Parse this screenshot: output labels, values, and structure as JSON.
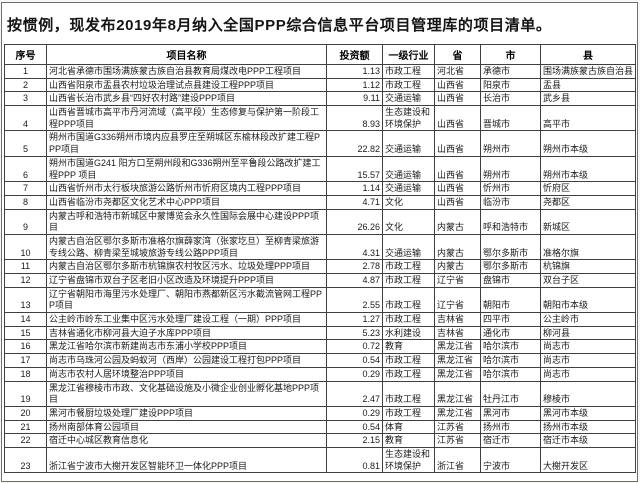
{
  "title": "按惯例，现发布2019年8月纳入全国PPP综合信息平台项目管理库的项目清单。",
  "colors": {
    "background": "#ffffff",
    "border": "#3f3f3f",
    "text": "#1a1a1a"
  },
  "table": {
    "columns": [
      "序号",
      "项目名称",
      "投资额",
      "一级行业",
      "省",
      "市",
      "县"
    ],
    "rows": [
      {
        "no": "1",
        "name": "河北省承德市围场满族蒙古族自治县教育局煤改电PPP工程项目",
        "investment": "1.13",
        "industry": "市政工程",
        "province": "河北省",
        "city": "承德市",
        "county": "围场满族蒙古族自治县"
      },
      {
        "no": "2",
        "name": "山西省阳泉市盂县农村垃圾治理试点县建设工程PPP项目",
        "investment": "1.12",
        "industry": "市政工程",
        "province": "山西省",
        "city": "阳泉市",
        "county": "盂县"
      },
      {
        "no": "3",
        "name": "山西省长治市武乡县“四好农村路”建设PPP项目",
        "investment": "9.11",
        "industry": "交通运输",
        "province": "山西省",
        "city": "长治市",
        "county": "武乡县"
      },
      {
        "no": "4",
        "name": "山西省晋城市高平市丹河流域（高平段）生态修复与保护第一阶段工程PPP项目",
        "investment": "8.93",
        "industry": "生态建设和环境保护",
        "province": "山西省",
        "city": "晋城市",
        "county": "高平市"
      },
      {
        "no": "5",
        "name": "朔州市国道G336朔州市境内应县罗庄至朔城区东榆林段改扩建工程PPP项目",
        "investment": "22.82",
        "industry": "交通运输",
        "province": "山西省",
        "city": "朔州市",
        "county": "朔州市本级"
      },
      {
        "no": "6",
        "name": "朔州市国道G241 阳方口至朔州段和G336朔州至平鲁段公路改扩建工程PPP 项目",
        "investment": "15.57",
        "industry": "交通运输",
        "province": "山西省",
        "city": "朔州市",
        "county": "朔州市本级"
      },
      {
        "no": "7",
        "name": "山西省忻州市太行板块旅游公路忻州市忻府区境内工程PPP项目",
        "investment": "1.14",
        "industry": "交通运输",
        "province": "山西省",
        "city": "忻州市",
        "county": "忻府区"
      },
      {
        "no": "8",
        "name": "山西省临汾市尧都区文化艺术中心PPP项目",
        "investment": "4.71",
        "industry": "文化",
        "province": "山西省",
        "city": "临汾市",
        "county": "尧都区"
      },
      {
        "no": "9",
        "name": "内蒙古呼和浩特市新城区中蒙博览会永久性国际会展中心建设PPP项目",
        "investment": "26.26",
        "industry": "文化",
        "province": "内蒙古",
        "city": "呼和浩特市",
        "county": "新城区"
      },
      {
        "no": "10",
        "name": "内蒙古自治区鄂尔多斯市准格尔旗薛家湾（张家圪旦）至柳青梁旅游专线公路、柳青梁至城坡旅游专线公路PPP项目",
        "investment": "4.31",
        "industry": "交通运输",
        "province": "内蒙古",
        "city": "鄂尔多斯市",
        "county": "准格尔旗"
      },
      {
        "no": "11",
        "name": "内蒙古自治区鄂尔多斯市杭锦旗农村牧区污水、垃圾处理PPP项目",
        "investment": "2.78",
        "industry": "市政工程",
        "province": "内蒙古",
        "city": "鄂尔多斯市",
        "county": "杭锦旗"
      },
      {
        "no": "12",
        "name": "辽宁省盘锦市双台子区老旧小区改造及环境提升PPP项目",
        "investment": "4.87",
        "industry": "市政工程",
        "province": "辽宁省",
        "city": "盘锦市",
        "county": "双台子区"
      },
      {
        "no": "13",
        "name": "辽宁省朝阳市海里污水处理厂、朝阳市燕都新区污水截流管网工程PPP项目",
        "investment": "2.55",
        "industry": "市政工程",
        "province": "辽宁省",
        "city": "朝阳市",
        "county": "朝阳市本级"
      },
      {
        "no": "14",
        "name": "公主岭市岭东工业集中区污水处理厂建设工程（一期）PPP项目",
        "investment": "1.27",
        "industry": "市政工程",
        "province": "吉林省",
        "city": "四平市",
        "county": "公主岭市"
      },
      {
        "no": "15",
        "name": "吉林省通化市柳河县大迫子水库PPP项目",
        "investment": "5.23",
        "industry": "水利建设",
        "province": "吉林省",
        "city": "通化市",
        "county": "柳河县"
      },
      {
        "no": "16",
        "name": "黑龙江省哈尔滨市新建尚志市东浦小学校PPP项目",
        "investment": "0.72",
        "industry": "教育",
        "province": "黑龙江省",
        "city": "哈尔滨市",
        "county": "尚志市"
      },
      {
        "no": "17",
        "name": "尚志市乌珠河公园及蚂蚁河（西岸）公园建设工程打包PPP项目",
        "investment": "0.54",
        "industry": "市政工程",
        "province": "黑龙江省",
        "city": "哈尔滨市",
        "county": "尚志市"
      },
      {
        "no": "18",
        "name": "尚志市农村人居环境整治PPP项目",
        "investment": "0.29",
        "industry": "市政工程",
        "province": "黑龙江省",
        "city": "哈尔滨市",
        "county": "尚志市"
      },
      {
        "no": "19",
        "name": "黑龙江省穆棱市市政、文化基础设施及小微企业创业孵化基地PPP项目",
        "investment": "2.47",
        "industry": "市政工程",
        "province": "黑龙江省",
        "city": "牡丹江市",
        "county": "穆棱市"
      },
      {
        "no": "20",
        "name": "黑河市餐厨垃圾处理厂建设PPP项目",
        "investment": "0.29",
        "industry": "市政工程",
        "province": "黑龙江省",
        "city": "黑河市",
        "county": "黑河市本级"
      },
      {
        "no": "21",
        "name": "扬州南部体育公园项目",
        "investment": "0.54",
        "industry": "体育",
        "province": "江苏省",
        "city": "扬州市",
        "county": "扬州市本级"
      },
      {
        "no": "22",
        "name": "宿迁中心城区教育信息化",
        "investment": "2.15",
        "industry": "教育",
        "province": "江苏省",
        "city": "宿迁市",
        "county": "宿迁市本级"
      },
      {
        "no": "23",
        "name": "浙江省宁波市大榭开发区智能环卫一体化PPP项目",
        "investment": "0.81",
        "industry": "生态建设和环境保护",
        "province": "浙江省",
        "city": "宁波市",
        "county": "大榭开发区"
      }
    ]
  }
}
